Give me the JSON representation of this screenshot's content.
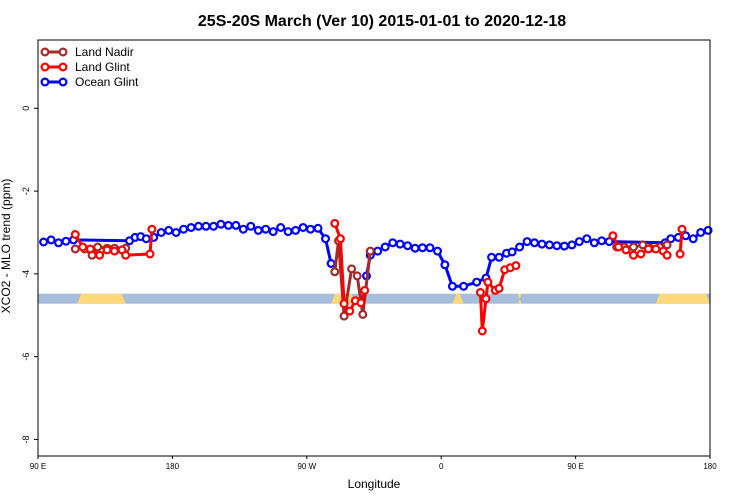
{
  "chart_data": {
    "type": "line",
    "title": "25S-20S March (Ver 10)   2015-01-01 to 2020-12-18",
    "xlabel": "Longitude",
    "ylabel": "XCO2 - MLO trend (ppm)",
    "xlim": [
      90,
      450
    ],
    "ylim": [
      -8.4,
      1.65
    ],
    "x_ticks": [
      {
        "value": 90,
        "label": "90 E"
      },
      {
        "value": 162,
        "label": "180"
      },
      {
        "value": 234,
        "label": "90 W"
      },
      {
        "value": 306,
        "label": "0"
      },
      {
        "value": 378,
        "label": "90 E"
      },
      {
        "value": 450,
        "label": "180"
      }
    ],
    "y_ticks": [
      {
        "value": 0,
        "label": "0"
      },
      {
        "value": -2,
        "label": "-2"
      },
      {
        "value": -4,
        "label": "-4"
      },
      {
        "value": -6,
        "label": "-6"
      },
      {
        "value": -8,
        "label": "-8"
      }
    ],
    "legend": {
      "position": "top-left",
      "entries": [
        {
          "name": "Land Nadir",
          "color": "#a52a2a"
        },
        {
          "name": "Land Glint",
          "color": "#ff0000"
        },
        {
          "name": "Ocean Glint",
          "color": "#0000ff"
        }
      ]
    },
    "surface_band": {
      "y": -4.6,
      "ocean_color": "#a6bddb",
      "land_color": "#fdd97a",
      "land_segments": [
        [
          111,
          137
        ],
        [
          247,
          260
        ],
        [
          312,
          318
        ],
        [
          347,
          349
        ],
        [
          421,
          453
        ]
      ]
    },
    "series": [
      {
        "name": "Ocean Glint",
        "color": "#0000ff",
        "segments": [
          [
            [
              93,
              -3.23
            ],
            [
              97,
              -3.18
            ],
            [
              101,
              -3.25
            ],
            [
              105,
              -3.21
            ],
            [
              109,
              -3.18
            ],
            [
              139,
              -3.2
            ],
            [
              142,
              -3.12
            ],
            [
              145,
              -3.1
            ],
            [
              148,
              -3.15
            ],
            [
              152,
              -3.12
            ],
            [
              156,
              -3.0
            ],
            [
              160,
              -2.95
            ],
            [
              164,
              -3.0
            ],
            [
              168,
              -2.92
            ],
            [
              172,
              -2.88
            ],
            [
              176,
              -2.85
            ],
            [
              180,
              -2.85
            ],
            [
              184,
              -2.85
            ],
            [
              188,
              -2.8
            ],
            [
              192,
              -2.83
            ],
            [
              196,
              -2.83
            ],
            [
              200,
              -2.92
            ],
            [
              204,
              -2.85
            ],
            [
              208,
              -2.95
            ],
            [
              212,
              -2.92
            ],
            [
              216,
              -2.98
            ],
            [
              220,
              -2.88
            ],
            [
              224,
              -2.98
            ],
            [
              228,
              -2.95
            ],
            [
              232,
              -2.88
            ],
            [
              236,
              -2.92
            ],
            [
              240,
              -2.9
            ],
            [
              244,
              -3.15
            ],
            [
              247,
              -3.75
            ]
          ],
          [
            [
              266,
              -4.05
            ],
            [
              268,
              -3.55
            ],
            [
              272,
              -3.45
            ],
            [
              276,
              -3.35
            ],
            [
              280,
              -3.25
            ],
            [
              284,
              -3.28
            ],
            [
              288,
              -3.32
            ],
            [
              292,
              -3.38
            ],
            [
              296,
              -3.37
            ],
            [
              300,
              -3.37
            ],
            [
              304,
              -3.45
            ],
            [
              308,
              -3.78
            ],
            [
              312,
              -4.3
            ],
            [
              318,
              -4.3
            ],
            [
              325,
              -4.2
            ],
            [
              330,
              -4.1
            ],
            [
              333,
              -3.6
            ],
            [
              337,
              -3.6
            ],
            [
              341,
              -3.5
            ],
            [
              344,
              -3.47
            ],
            [
              348,
              -3.35
            ],
            [
              352,
              -3.22
            ],
            [
              356,
              -3.25
            ],
            [
              360,
              -3.28
            ],
            [
              364,
              -3.3
            ],
            [
              368,
              -3.32
            ],
            [
              372,
              -3.33
            ],
            [
              376,
              -3.3
            ],
            [
              380,
              -3.22
            ],
            [
              384,
              -3.15
            ],
            [
              388,
              -3.25
            ],
            [
              392,
              -3.2
            ],
            [
              396,
              -3.22
            ],
            [
              426,
              -3.25
            ],
            [
              429,
              -3.15
            ],
            [
              433,
              -3.12
            ],
            [
              437,
              -3.08
            ],
            [
              441,
              -3.15
            ],
            [
              445,
              -3.0
            ],
            [
              449,
              -2.95
            ]
          ]
        ]
      },
      {
        "name": "Land Nadir",
        "color": "#a52a2a",
        "segments": [
          [
            [
              110,
              -3.4
            ],
            [
              115,
              -3.4
            ],
            [
              119,
              -3.55
            ],
            [
              122,
              -3.35
            ],
            [
              127,
              -3.38
            ],
            [
              131,
              -3.38
            ],
            [
              137,
              -3.38
            ]
          ],
          [
            [
              249,
              -3.95
            ],
            [
              251,
              -3.2
            ],
            [
              254,
              -5.02
            ],
            [
              258,
              -3.88
            ],
            [
              261,
              -4.05
            ],
            [
              264,
              -4.98
            ],
            [
              268,
              -3.45
            ]
          ],
          [
            [
              400,
              -3.35
            ],
            [
              404,
              -3.35
            ],
            [
              409,
              -3.35
            ],
            [
              414,
              -3.3
            ],
            [
              418,
              -3.38
            ],
            [
              423,
              -3.35
            ],
            [
              427,
              -3.3
            ]
          ]
        ]
      },
      {
        "name": "Land Glint",
        "color": "#ff0000",
        "segments": [
          [
            [
              110,
              -3.05
            ],
            [
              114,
              -3.35
            ],
            [
              118,
              -3.4
            ],
            [
              123,
              -3.55
            ],
            [
              127,
              -3.42
            ],
            [
              131,
              -3.45
            ],
            [
              135,
              -3.42
            ],
            [
              137,
              -3.55
            ],
            [
              150,
              -3.52
            ],
            [
              151,
              -2.92
            ]
          ],
          [
            [
              249,
              -2.78
            ],
            [
              252,
              -3.15
            ],
            [
              254,
              -4.72
            ],
            [
              257,
              -4.9
            ],
            [
              260,
              -4.65
            ],
            [
              263,
              -4.7
            ],
            [
              265,
              -4.4
            ]
          ],
          [
            [
              327,
              -4.45
            ],
            [
              328,
              -5.38
            ],
            [
              330,
              -4.6
            ],
            [
              331,
              -4.2
            ],
            [
              335,
              -4.4
            ],
            [
              337,
              -4.35
            ],
            [
              340,
              -3.9
            ],
            [
              343,
              -3.85
            ],
            [
              346,
              -3.8
            ]
          ],
          [
            [
              398,
              -3.08
            ],
            [
              401,
              -3.35
            ],
            [
              405,
              -3.42
            ],
            [
              409,
              -3.55
            ],
            [
              413,
              -3.52
            ],
            [
              417,
              -3.4
            ],
            [
              421,
              -3.4
            ],
            [
              425,
              -3.45
            ],
            [
              427,
              -3.55
            ]
          ],
          [
            [
              434,
              -3.52
            ],
            [
              435,
              -2.92
            ]
          ]
        ]
      }
    ]
  }
}
